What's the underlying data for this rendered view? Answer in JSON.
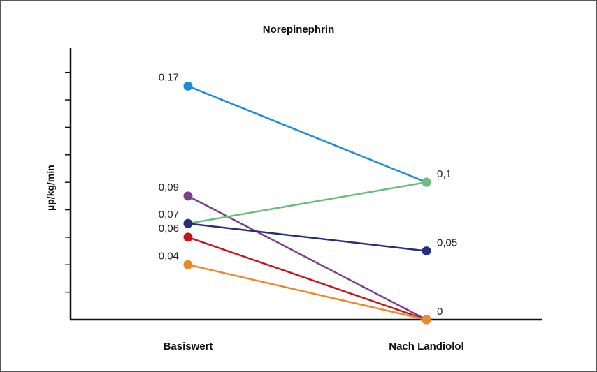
{
  "chart_data": {
    "type": "line",
    "title": "Norepinephrin",
    "xlabel": "",
    "ylabel": "µp/kg/min",
    "categories": [
      "Basiswert",
      "Nach Landiolol"
    ],
    "ylim": [
      0,
      0.19
    ],
    "grid": false,
    "legend": "none",
    "series": [
      {
        "values": [
          0.17,
          0.1
        ],
        "color": "#1a8fd8",
        "labels": [
          "0,17",
          "0,1"
        ]
      },
      {
        "values": [
          0.09,
          0.0
        ],
        "color": "#7b3f8c",
        "labels": [
          "0,09",
          ""
        ]
      },
      {
        "values": [
          0.07,
          0.1
        ],
        "color": "#6dbb7f",
        "labels": [
          "0,07",
          ""
        ]
      },
      {
        "values": [
          0.07,
          0.05
        ],
        "color": "#26307a",
        "labels": [
          "",
          "0,05"
        ]
      },
      {
        "values": [
          0.06,
          0.0
        ],
        "color": "#c4161c",
        "labels": [
          "0,06",
          ""
        ]
      },
      {
        "values": [
          0.04,
          0.0
        ],
        "color": "#e88a25",
        "labels": [
          "0,04",
          "0"
        ]
      }
    ]
  }
}
